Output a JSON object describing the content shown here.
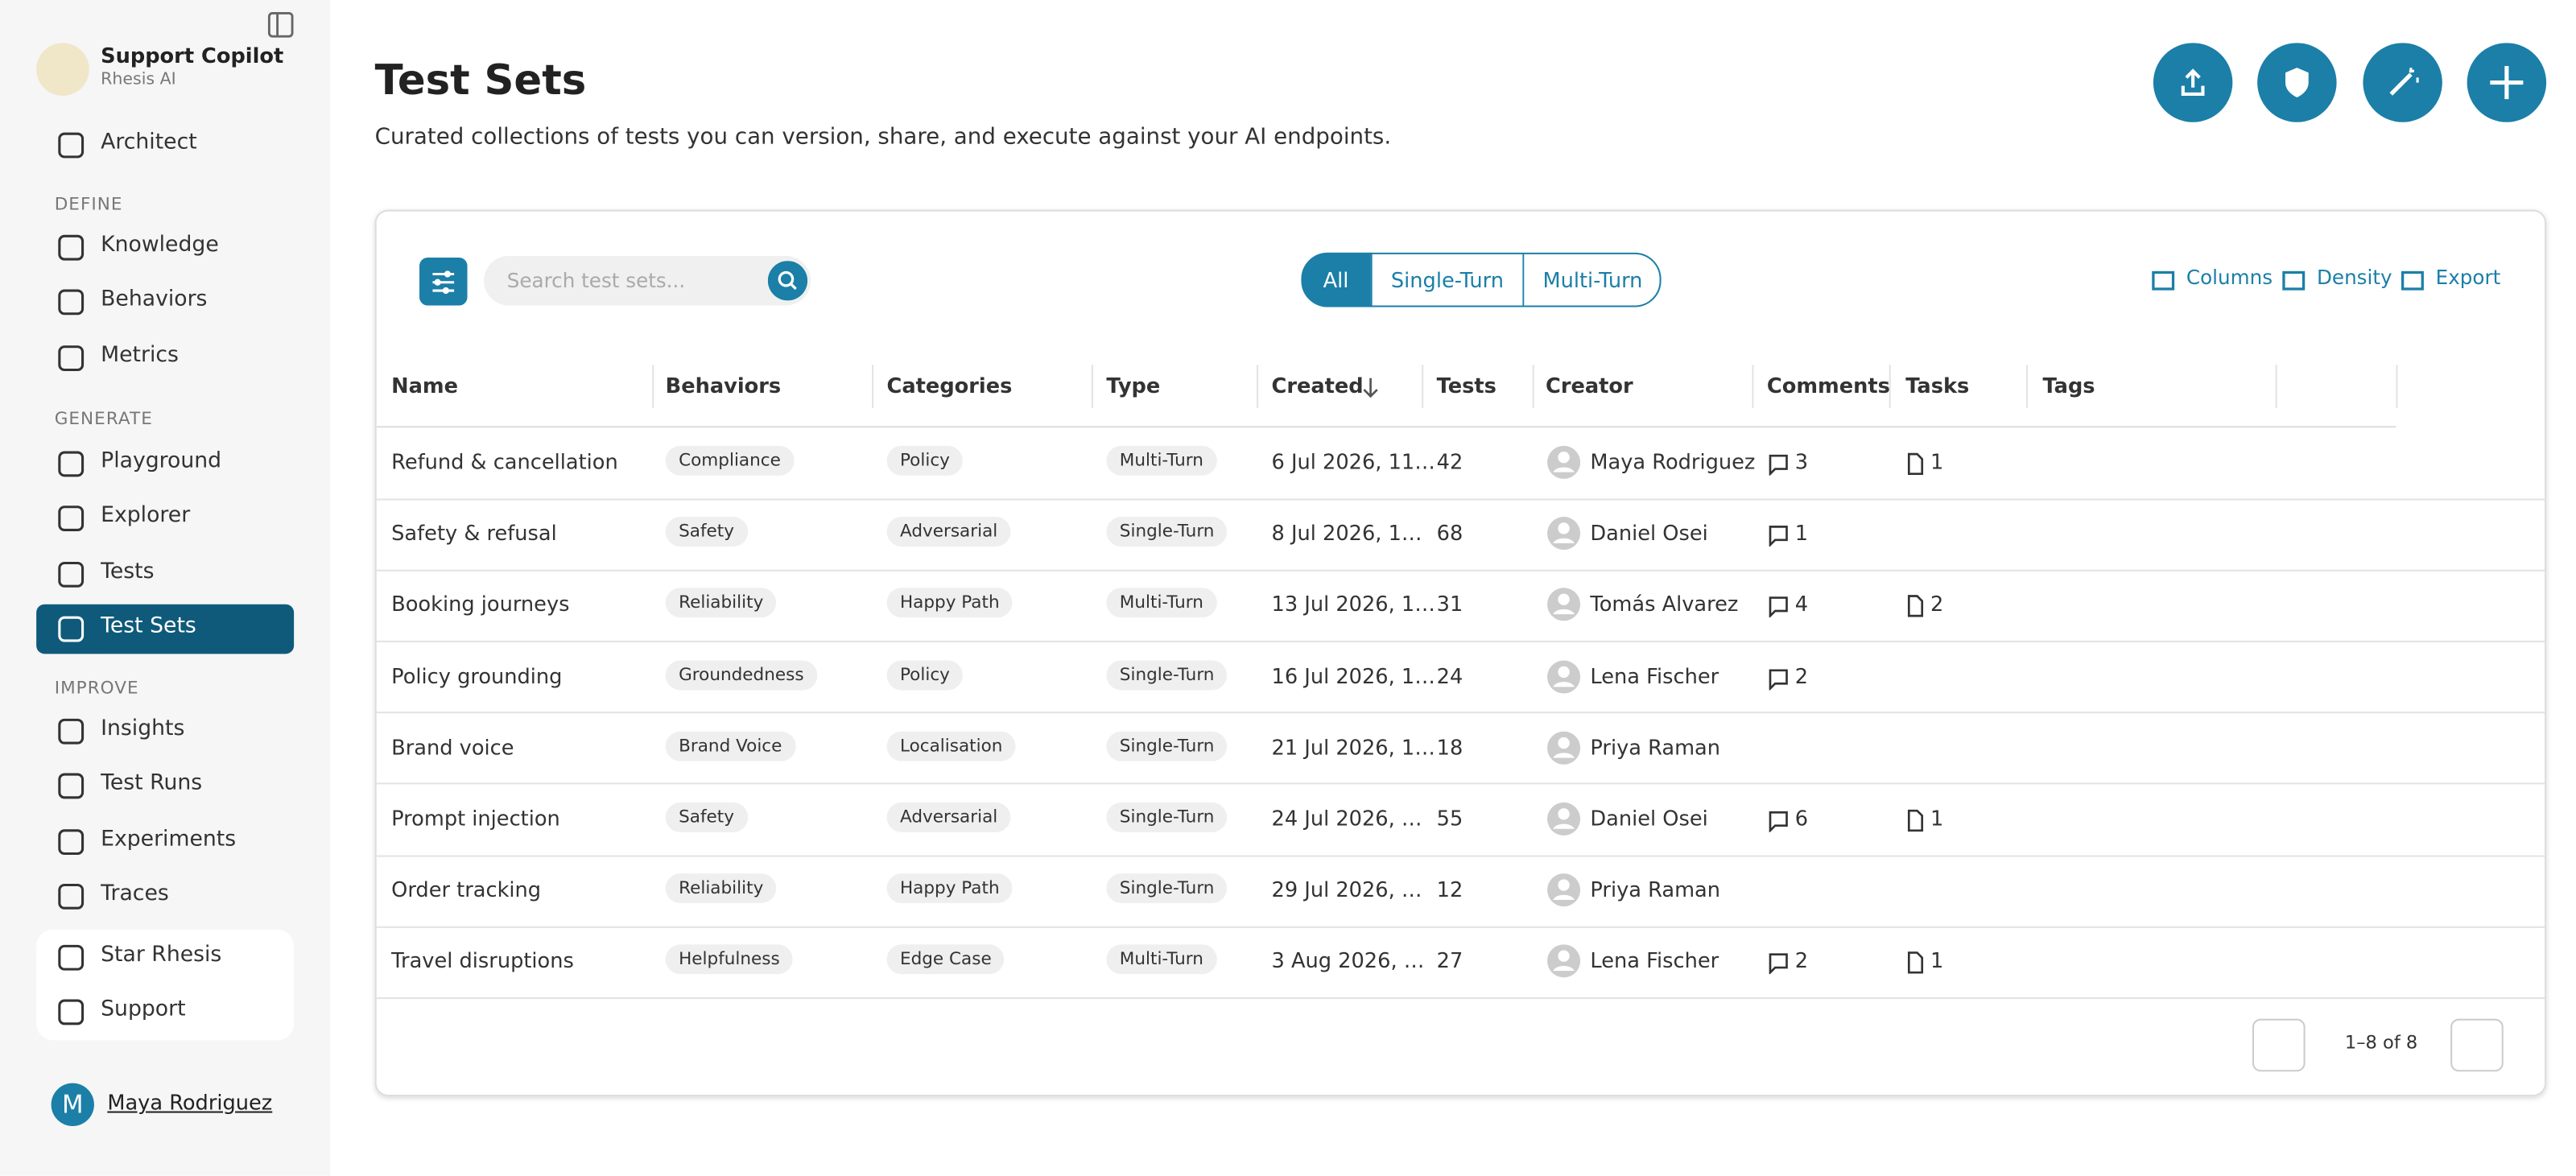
{
  "sidebar": {
    "org": "Support Copilot",
    "org_sub": "Rhesis AI",
    "top": [
      "Architect"
    ],
    "sections": [
      {
        "title": "DEFINE",
        "items": [
          "Knowledge",
          "Behaviors",
          "Metrics"
        ]
      },
      {
        "title": "GENERATE",
        "items": [
          "Playground",
          "Explorer",
          "Tests",
          "Test Sets"
        ]
      },
      {
        "title": "IMPROVE",
        "items": [
          "Insights",
          "Test Runs",
          "Experiments",
          "Traces"
        ]
      }
    ],
    "footer_links": [
      "Star Rhesis",
      "Support"
    ],
    "user": {
      "initial": "M",
      "name": "Maya Rodriguez"
    }
  },
  "header": {
    "title": "Test Sets",
    "subtitle": "Curated collections of tests you can version, share, and execute against your AI endpoints."
  },
  "toolbar": {
    "search_placeholder": "Search test sets...",
    "filters": [
      "All",
      "Single-Turn",
      "Multi-Turn"
    ],
    "actions": [
      "Columns",
      "Density",
      "Export"
    ]
  },
  "table": {
    "columns": [
      "Name",
      "Behaviors",
      "Categories",
      "Type",
      "Created",
      "Tests",
      "Creator",
      "Comments",
      "Tasks",
      "Tags"
    ],
    "rows": [
      [
        "Refund & cancellation",
        "Compliance",
        "Policy",
        "Multi-Turn",
        "6 Jul 2026, 11…",
        42,
        "Maya Rodriguez",
        3,
        1
      ],
      [
        "Safety & refusal",
        "Safety",
        "Adversarial",
        "Single-Turn",
        "8 Jul 2026, 1…",
        68,
        "Daniel Osei",
        1,
        null
      ],
      [
        "Booking journeys",
        "Reliability",
        "Happy Path",
        "Multi-Turn",
        "13 Jul 2026, 1…",
        31,
        "Tomás Alvarez",
        4,
        2
      ],
      [
        "Policy grounding",
        "Groundedness",
        "Policy",
        "Single-Turn",
        "16 Jul 2026, 1…",
        24,
        "Lena Fischer",
        2,
        null
      ],
      [
        "Brand voice",
        "Brand Voice",
        "Localisation",
        "Single-Turn",
        "21 Jul 2026, 1…",
        18,
        "Priya Raman",
        null,
        null
      ],
      [
        "Prompt injection",
        "Safety",
        "Adversarial",
        "Single-Turn",
        "24 Jul 2026, …",
        55,
        "Daniel Osei",
        6,
        1
      ],
      [
        "Order tracking",
        "Reliability",
        "Happy Path",
        "Single-Turn",
        "29 Jul 2026, …",
        12,
        "Priya Raman",
        null,
        null
      ],
      [
        "Travel disruptions",
        "Helpfulness",
        "Edge Case",
        "Multi-Turn",
        "3 Aug 2026, …",
        27,
        "Lena Fischer",
        2,
        1
      ]
    ]
  },
  "pagination": "1–8 of 8"
}
